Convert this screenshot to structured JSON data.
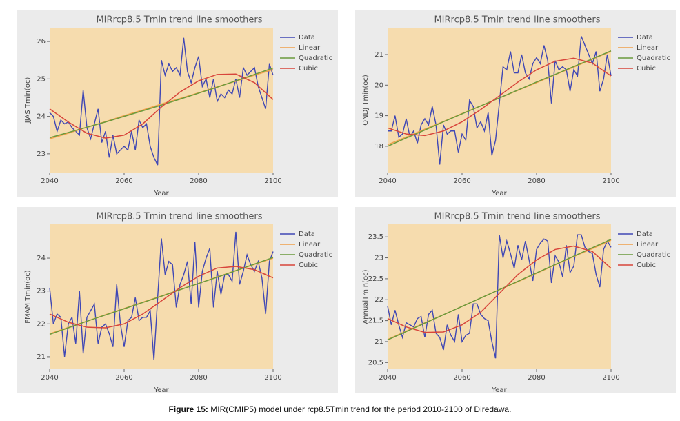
{
  "caption": {
    "label": "Figure 15:",
    "text": "MIR(CMIP5) model under rcp8.5Tmin  trend for the period 2010-2100 of Diredawa."
  },
  "chart_data": [
    {
      "type": "line",
      "title": "MIRrcp8.5 Tmin trend line smoothers",
      "x_label": "Year",
      "y_label": "JJAS Tmin(oc)",
      "legend": "right",
      "grid": false,
      "xlim": [
        2040,
        2100
      ],
      "xticks": [
        2040,
        2060,
        2080,
        2100
      ],
      "ylim": [
        22.5,
        26.37
      ],
      "yticks": [
        23,
        24,
        25,
        26
      ],
      "x": [
        2040,
        2041,
        2042,
        2043,
        2044,
        2045,
        2046,
        2047,
        2048,
        2049,
        2050,
        2051,
        2052,
        2053,
        2054,
        2055,
        2056,
        2057,
        2058,
        2059,
        2060,
        2061,
        2062,
        2063,
        2064,
        2065,
        2066,
        2067,
        2068,
        2069,
        2070,
        2071,
        2072,
        2073,
        2074,
        2075,
        2076,
        2077,
        2078,
        2079,
        2080,
        2081,
        2082,
        2083,
        2084,
        2085,
        2086,
        2087,
        2088,
        2089,
        2090,
        2091,
        2092,
        2093,
        2094,
        2095,
        2096,
        2097,
        2098,
        2099,
        2100
      ],
      "series": [
        {
          "name": "Data",
          "color": "#3f47b5",
          "values": [
            24.1,
            24.0,
            23.6,
            23.9,
            23.8,
            23.85,
            23.7,
            23.6,
            23.5,
            24.7,
            23.7,
            23.4,
            23.8,
            24.2,
            23.3,
            23.6,
            22.9,
            23.5,
            23.0,
            23.1,
            23.2,
            23.1,
            23.6,
            23.1,
            23.9,
            23.7,
            23.8,
            23.2,
            22.9,
            22.7,
            25.5,
            25.1,
            25.4,
            25.2,
            25.3,
            25.1,
            26.1,
            25.2,
            24.9,
            25.3,
            25.6,
            24.8,
            25.0,
            24.5,
            25.0,
            24.4,
            24.6,
            24.5,
            24.7,
            24.6,
            25.0,
            24.5,
            25.3,
            25.1,
            25.2,
            25.3,
            24.8,
            24.5,
            24.2,
            25.4,
            25.1
          ]
        },
        {
          "name": "Linear",
          "color": "#f0a04b",
          "x": [
            2040,
            2045,
            2050,
            2055,
            2060,
            2065,
            2070,
            2075,
            2080,
            2085,
            2090,
            2095,
            2100
          ],
          "values": [
            23.4,
            23.55,
            23.71,
            23.86,
            24.02,
            24.17,
            24.33,
            24.48,
            24.63,
            24.79,
            24.94,
            25.1,
            25.25
          ]
        },
        {
          "name": "Quadratic",
          "color": "#6b9a3c",
          "x": [
            2040,
            2045,
            2050,
            2055,
            2060,
            2065,
            2070,
            2075,
            2080,
            2085,
            2090,
            2095,
            2100
          ],
          "values": [
            23.43,
            23.57,
            23.71,
            23.85,
            24.0,
            24.15,
            24.3,
            24.46,
            24.62,
            24.78,
            24.95,
            25.12,
            25.29
          ]
        },
        {
          "name": "Cubic",
          "color": "#d8453b",
          "x": [
            2040,
            2045,
            2050,
            2055,
            2060,
            2065,
            2070,
            2075,
            2080,
            2085,
            2090,
            2095,
            2100
          ],
          "values": [
            24.2,
            23.85,
            23.55,
            23.42,
            23.5,
            23.8,
            24.25,
            24.65,
            24.95,
            25.12,
            25.13,
            24.9,
            24.45
          ]
        }
      ]
    },
    {
      "type": "line",
      "title": "MIRrcp8.5 Tmin trend line smoothers",
      "x_label": "Year",
      "y_label": "ONDJ Tmin(oc)",
      "legend": "right",
      "grid": false,
      "xlim": [
        2040,
        2100
      ],
      "xticks": [
        2040,
        2060,
        2080,
        2100
      ],
      "ylim": [
        17.14,
        21.88
      ],
      "yticks": [
        18,
        19,
        20,
        21
      ],
      "x": [
        2040,
        2041,
        2042,
        2043,
        2044,
        2045,
        2046,
        2047,
        2048,
        2049,
        2050,
        2051,
        2052,
        2053,
        2054,
        2055,
        2056,
        2057,
        2058,
        2059,
        2060,
        2061,
        2062,
        2063,
        2064,
        2065,
        2066,
        2067,
        2068,
        2069,
        2070,
        2071,
        2072,
        2073,
        2074,
        2075,
        2076,
        2077,
        2078,
        2079,
        2080,
        2081,
        2082,
        2083,
        2084,
        2085,
        2086,
        2087,
        2088,
        2089,
        2090,
        2091,
        2092,
        2093,
        2094,
        2095,
        2096,
        2097,
        2098,
        2099,
        2100
      ],
      "series": [
        {
          "name": "Data",
          "color": "#3f47b5",
          "values": [
            18.5,
            18.5,
            19.0,
            18.3,
            18.4,
            18.9,
            18.3,
            18.5,
            18.1,
            18.7,
            18.9,
            18.7,
            19.3,
            18.7,
            17.4,
            18.7,
            18.4,
            18.5,
            18.5,
            17.8,
            18.4,
            18.2,
            19.5,
            19.3,
            18.6,
            18.8,
            18.5,
            19.1,
            17.7,
            18.2,
            19.4,
            20.6,
            20.5,
            21.1,
            20.4,
            20.4,
            21.0,
            20.4,
            20.2,
            20.7,
            20.9,
            20.7,
            21.3,
            20.8,
            19.4,
            20.8,
            20.5,
            20.6,
            20.5,
            19.8,
            20.5,
            20.3,
            21.6,
            21.3,
            21.0,
            20.7,
            21.1,
            19.8,
            20.2,
            21.0,
            20.3
          ]
        },
        {
          "name": "Linear",
          "color": "#f0a04b",
          "x": [
            2040,
            2045,
            2050,
            2055,
            2060,
            2065,
            2070,
            2075,
            2080,
            2085,
            2090,
            2095,
            2100
          ],
          "values": [
            18.05,
            18.3,
            18.56,
            18.81,
            19.07,
            19.32,
            19.58,
            19.83,
            20.08,
            20.34,
            20.59,
            20.85,
            21.1
          ]
        },
        {
          "name": "Quadratic",
          "color": "#6b9a3c",
          "x": [
            2040,
            2045,
            2050,
            2055,
            2060,
            2065,
            2070,
            2075,
            2080,
            2085,
            2090,
            2095,
            2100
          ],
          "values": [
            18.0,
            18.27,
            18.53,
            18.8,
            19.06,
            19.32,
            19.58,
            19.84,
            20.1,
            20.35,
            20.61,
            20.86,
            21.12
          ]
        },
        {
          "name": "Cubic",
          "color": "#d8453b",
          "x": [
            2040,
            2045,
            2050,
            2055,
            2060,
            2065,
            2070,
            2075,
            2080,
            2085,
            2090,
            2095,
            2100
          ],
          "values": [
            18.6,
            18.4,
            18.35,
            18.5,
            18.8,
            19.2,
            19.65,
            20.1,
            20.5,
            20.78,
            20.88,
            20.72,
            20.3
          ]
        }
      ]
    },
    {
      "type": "line",
      "title": "MIRrcp8.5 Tmin trend line smoothers",
      "x_label": "Year",
      "y_label": "FMAM Tmin(oc)",
      "legend": "right",
      "grid": false,
      "xlim": [
        2040,
        2100
      ],
      "xticks": [
        2040,
        2060,
        2080,
        2100
      ],
      "ylim": [
        20.62,
        25.03
      ],
      "yticks": [
        21,
        22,
        23,
        24
      ],
      "x": [
        2040,
        2041,
        2042,
        2043,
        2044,
        2045,
        2046,
        2047,
        2048,
        2049,
        2050,
        2051,
        2052,
        2053,
        2054,
        2055,
        2056,
        2057,
        2058,
        2059,
        2060,
        2061,
        2062,
        2063,
        2064,
        2065,
        2066,
        2067,
        2068,
        2069,
        2070,
        2071,
        2072,
        2073,
        2074,
        2075,
        2076,
        2077,
        2078,
        2079,
        2080,
        2081,
        2082,
        2083,
        2084,
        2085,
        2086,
        2087,
        2088,
        2089,
        2090,
        2091,
        2092,
        2093,
        2094,
        2095,
        2096,
        2097,
        2098,
        2099,
        2100
      ],
      "series": [
        {
          "name": "Data",
          "color": "#3f47b5",
          "values": [
            23.1,
            22.0,
            22.3,
            22.2,
            21.0,
            22.0,
            22.2,
            21.4,
            23.0,
            21.1,
            22.2,
            22.4,
            22.6,
            21.4,
            21.9,
            22.0,
            21.7,
            21.3,
            23.2,
            22.0,
            21.3,
            22.1,
            22.2,
            22.8,
            22.1,
            22.2,
            22.2,
            22.4,
            20.9,
            22.8,
            24.6,
            23.5,
            23.9,
            23.8,
            22.5,
            23.2,
            23.5,
            23.9,
            22.6,
            24.5,
            22.5,
            23.6,
            24.0,
            24.3,
            22.5,
            23.6,
            22.9,
            23.5,
            23.5,
            23.3,
            24.8,
            23.2,
            23.6,
            24.1,
            23.8,
            23.6,
            23.9,
            23.4,
            22.3,
            23.9,
            24.2
          ]
        },
        {
          "name": "Linear",
          "color": "#f0a04b",
          "x": [
            2040,
            2045,
            2050,
            2055,
            2060,
            2065,
            2070,
            2075,
            2080,
            2085,
            2090,
            2095,
            2100
          ],
          "values": [
            21.7,
            21.89,
            22.08,
            22.28,
            22.47,
            22.66,
            22.85,
            23.04,
            23.23,
            23.43,
            23.62,
            23.81,
            24.0
          ]
        },
        {
          "name": "Quadratic",
          "color": "#6b9a3c",
          "x": [
            2040,
            2045,
            2050,
            2055,
            2060,
            2065,
            2070,
            2075,
            2080,
            2085,
            2090,
            2095,
            2100
          ],
          "values": [
            21.68,
            21.88,
            22.08,
            22.27,
            22.46,
            22.65,
            22.84,
            23.04,
            23.23,
            23.42,
            23.62,
            23.82,
            24.02
          ]
        },
        {
          "name": "Cubic",
          "color": "#d8453b",
          "x": [
            2040,
            2045,
            2050,
            2055,
            2060,
            2065,
            2070,
            2075,
            2080,
            2085,
            2090,
            2095,
            2100
          ],
          "values": [
            22.3,
            22.05,
            21.9,
            21.88,
            22.0,
            22.3,
            22.7,
            23.1,
            23.45,
            23.7,
            23.75,
            23.65,
            23.4
          ]
        }
      ]
    },
    {
      "type": "line",
      "title": "MIRrcp8.5 Tmin trend line smoothers",
      "x_label": "Year",
      "y_label": "AnnualTmin(oc)",
      "legend": "right",
      "grid": false,
      "xlim": [
        2040,
        2100
      ],
      "xticks": [
        2040,
        2060,
        2080,
        2100
      ],
      "ylim": [
        20.34,
        23.8
      ],
      "yticks": [
        20.5,
        21,
        21.5,
        22,
        22.5,
        23,
        23.5
      ],
      "x": [
        2040,
        2041,
        2042,
        2043,
        2044,
        2045,
        2046,
        2047,
        2048,
        2049,
        2050,
        2051,
        2052,
        2053,
        2054,
        2055,
        2056,
        2057,
        2058,
        2059,
        2060,
        2061,
        2062,
        2063,
        2064,
        2065,
        2066,
        2067,
        2068,
        2069,
        2070,
        2071,
        2072,
        2073,
        2074,
        2075,
        2076,
        2077,
        2078,
        2079,
        2080,
        2081,
        2082,
        2083,
        2084,
        2085,
        2086,
        2087,
        2088,
        2089,
        2090,
        2091,
        2092,
        2093,
        2094,
        2095,
        2096,
        2097,
        2098,
        2099,
        2100
      ],
      "series": [
        {
          "name": "Data",
          "color": "#3f47b5",
          "values": [
            21.85,
            21.4,
            21.75,
            21.4,
            21.1,
            21.45,
            21.4,
            21.35,
            21.55,
            21.6,
            21.1,
            21.65,
            21.75,
            21.2,
            21.1,
            20.8,
            21.4,
            21.15,
            21.0,
            21.65,
            21.0,
            21.15,
            21.2,
            21.9,
            21.9,
            21.65,
            21.55,
            21.5,
            21.0,
            20.6,
            23.55,
            23.0,
            23.4,
            23.1,
            22.75,
            23.3,
            22.95,
            23.4,
            22.95,
            22.45,
            23.2,
            23.35,
            23.45,
            23.4,
            22.4,
            23.05,
            22.9,
            22.55,
            23.3,
            22.65,
            22.8,
            23.55,
            23.55,
            23.25,
            23.15,
            23.1,
            22.6,
            22.3,
            23.2,
            23.4,
            23.25
          ]
        },
        {
          "name": "Linear",
          "color": "#f0a04b",
          "x": [
            2040,
            2045,
            2050,
            2055,
            2060,
            2065,
            2070,
            2075,
            2080,
            2085,
            2090,
            2095,
            2100
          ],
          "values": [
            21.05,
            21.25,
            21.45,
            21.64,
            21.84,
            22.04,
            22.24,
            22.43,
            22.63,
            22.83,
            23.03,
            23.22,
            23.42
          ]
        },
        {
          "name": "Quadratic",
          "color": "#6b9a3c",
          "x": [
            2040,
            2045,
            2050,
            2055,
            2060,
            2065,
            2070,
            2075,
            2080,
            2085,
            2090,
            2095,
            2100
          ],
          "values": [
            21.04,
            21.24,
            21.44,
            21.64,
            21.84,
            22.04,
            22.24,
            22.44,
            22.64,
            22.84,
            23.04,
            23.24,
            23.44
          ]
        },
        {
          "name": "Cubic",
          "color": "#d8453b",
          "x": [
            2040,
            2045,
            2050,
            2055,
            2060,
            2065,
            2070,
            2075,
            2080,
            2085,
            2090,
            2095,
            2100
          ],
          "values": [
            21.55,
            21.35,
            21.22,
            21.23,
            21.4,
            21.7,
            22.15,
            22.6,
            22.95,
            23.2,
            23.28,
            23.15,
            22.75
          ]
        }
      ]
    }
  ]
}
